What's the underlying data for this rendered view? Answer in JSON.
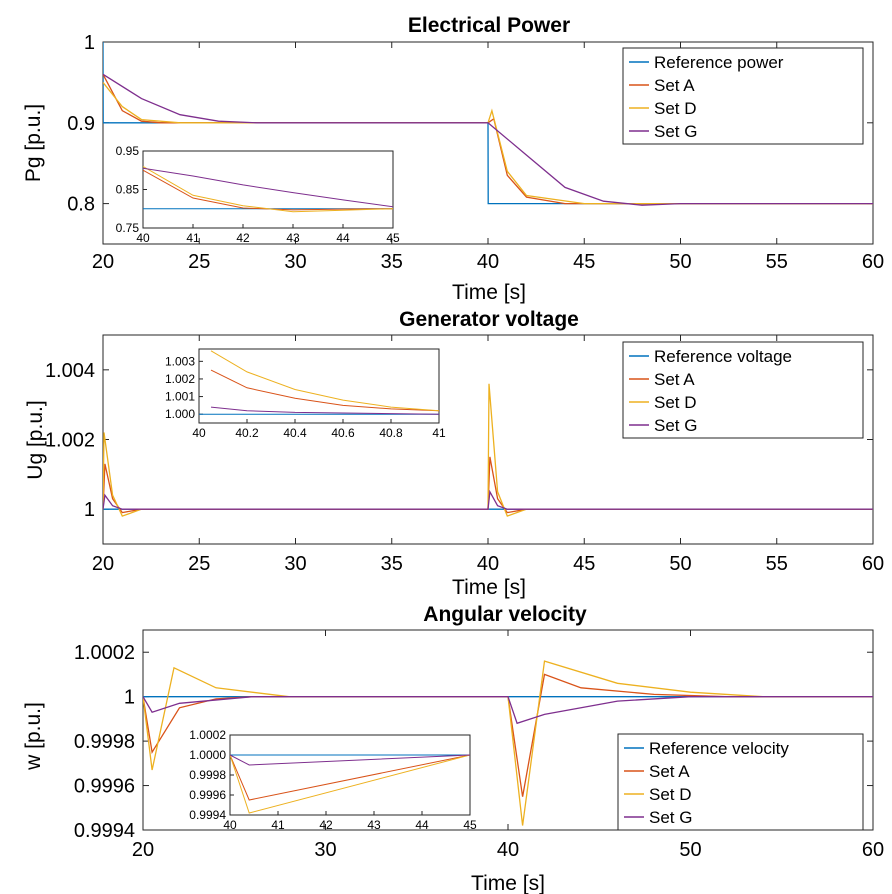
{
  "chart_data": [
    {
      "type": "line",
      "title": "Electrical Power",
      "xlabel": "Time [s]",
      "ylabel": "Pg [p.u.]",
      "xlim": [
        20,
        60
      ],
      "ylim": [
        0.75,
        1.0
      ],
      "xticks": [
        "20",
        "25",
        "30",
        "35",
        "40",
        "45",
        "50",
        "55",
        "60"
      ],
      "yticks": [
        "0.8",
        "0.9",
        "1"
      ],
      "legend_position": "top-right",
      "series": [
        {
          "name": "Reference power",
          "color": "#0072BD",
          "points": [
            [
              20,
              1.0
            ],
            [
              20.01,
              0.9
            ],
            [
              40,
              0.9
            ],
            [
              40.01,
              0.8
            ],
            [
              60,
              0.8
            ]
          ]
        },
        {
          "name": "Set A",
          "color": "#D95319",
          "points": [
            [
              20,
              0.96
            ],
            [
              21,
              0.915
            ],
            [
              22,
              0.902
            ],
            [
              23,
              0.9
            ],
            [
              40,
              0.9
            ],
            [
              40.3,
              0.905
            ],
            [
              41,
              0.835
            ],
            [
              42,
              0.808
            ],
            [
              44,
              0.8
            ],
            [
              60,
              0.8
            ]
          ]
        },
        {
          "name": "Set D",
          "color": "#EDB120",
          "points": [
            [
              20,
              0.95
            ],
            [
              21,
              0.92
            ],
            [
              22,
              0.904
            ],
            [
              24,
              0.9
            ],
            [
              40,
              0.9
            ],
            [
              40.2,
              0.915
            ],
            [
              41,
              0.84
            ],
            [
              42,
              0.81
            ],
            [
              45,
              0.8
            ],
            [
              60,
              0.8
            ]
          ]
        },
        {
          "name": "Set G",
          "color": "#7E2F8E",
          "points": [
            [
              20,
              0.96
            ],
            [
              22,
              0.93
            ],
            [
              24,
              0.91
            ],
            [
              26,
              0.902
            ],
            [
              28,
              0.9
            ],
            [
              40,
              0.9
            ],
            [
              42,
              0.86
            ],
            [
              44,
              0.82
            ],
            [
              46,
              0.803
            ],
            [
              48,
              0.798
            ],
            [
              50,
              0.8
            ],
            [
              60,
              0.8
            ]
          ]
        }
      ],
      "inset": {
        "xlim": [
          40,
          45
        ],
        "ylim": [
          0.75,
          0.95
        ],
        "xticks": [
          "40",
          "41",
          "42",
          "43",
          "44",
          "45"
        ],
        "yticks": [
          "0.75",
          "0.85",
          "0.95"
        ],
        "series": [
          {
            "color": "#0072BD",
            "points": [
              [
                40,
                0.8
              ],
              [
                45,
                0.8
              ]
            ]
          },
          {
            "color": "#D95319",
            "points": [
              [
                40,
                0.9
              ],
              [
                41,
                0.828
              ],
              [
                42,
                0.802
              ],
              [
                43,
                0.797
              ],
              [
                44,
                0.799
              ],
              [
                45,
                0.8
              ]
            ]
          },
          {
            "color": "#EDB120",
            "points": [
              [
                40,
                0.91
              ],
              [
                41,
                0.835
              ],
              [
                42,
                0.808
              ],
              [
                43,
                0.792
              ],
              [
                44,
                0.796
              ],
              [
                45,
                0.8
              ]
            ]
          },
          {
            "color": "#7E2F8E",
            "points": [
              [
                40,
                0.905
              ],
              [
                41,
                0.885
              ],
              [
                42,
                0.862
              ],
              [
                43,
                0.842
              ],
              [
                44,
                0.823
              ],
              [
                45,
                0.805
              ]
            ]
          }
        ]
      }
    },
    {
      "type": "line",
      "title": "Generator voltage",
      "xlabel": "Time [s]",
      "ylabel": "Ug [p.u.]",
      "xlim": [
        20,
        60
      ],
      "ylim": [
        0.999,
        1.005
      ],
      "xticks": [
        "20",
        "25",
        "30",
        "35",
        "40",
        "45",
        "50",
        "55",
        "60"
      ],
      "yticks": [
        "1",
        "1.002",
        "1.004"
      ],
      "legend_position": "top-right",
      "series": [
        {
          "name": "Reference voltage",
          "color": "#0072BD",
          "points": [
            [
              20,
              1.0
            ],
            [
              60,
              1.0
            ]
          ]
        },
        {
          "name": "Set A",
          "color": "#D95319",
          "points": [
            [
              20,
              1.0
            ],
            [
              20.1,
              1.0013
            ],
            [
              20.5,
              1.0003
            ],
            [
              21,
              0.9999
            ],
            [
              22,
              1.0
            ],
            [
              40,
              1.0
            ],
            [
              40.1,
              1.0015
            ],
            [
              40.5,
              1.0003
            ],
            [
              41,
              0.9999
            ],
            [
              42,
              1.0
            ],
            [
              60,
              1.0
            ]
          ]
        },
        {
          "name": "Set D",
          "color": "#EDB120",
          "points": [
            [
              20,
              1.0
            ],
            [
              20.05,
              1.0022
            ],
            [
              20.5,
              1.0004
            ],
            [
              21,
              0.9998
            ],
            [
              22,
              1.0
            ],
            [
              40,
              1.0
            ],
            [
              40.05,
              1.0036
            ],
            [
              40.5,
              1.0005
            ],
            [
              41,
              0.9998
            ],
            [
              42,
              1.0
            ],
            [
              60,
              1.0
            ]
          ]
        },
        {
          "name": "Set G",
          "color": "#7E2F8E",
          "points": [
            [
              20,
              1.0
            ],
            [
              20.1,
              1.0004
            ],
            [
              20.5,
              1.0001
            ],
            [
              21,
              1.0
            ],
            [
              40,
              1.0
            ],
            [
              40.1,
              1.0005
            ],
            [
              40.5,
              1.0001
            ],
            [
              41,
              1.0
            ],
            [
              60,
              1.0
            ]
          ]
        }
      ],
      "inset": {
        "xlim": [
          40,
          41
        ],
        "ylim": [
          0.9995,
          1.0037
        ],
        "xticks": [
          "40",
          "40.2",
          "40.4",
          "40.6",
          "40.8",
          "41"
        ],
        "yticks": [
          "1.000",
          "1.001",
          "1.002",
          "1.003"
        ],
        "series": [
          {
            "color": "#0072BD",
            "points": [
              [
                40,
                1.0
              ],
              [
                41,
                1.0
              ]
            ]
          },
          {
            "color": "#D95319",
            "points": [
              [
                40.05,
                1.0025
              ],
              [
                40.2,
                1.0015
              ],
              [
                40.4,
                1.0009
              ],
              [
                40.6,
                1.0005
              ],
              [
                40.8,
                1.0003
              ],
              [
                41,
                1.0002
              ]
            ]
          },
          {
            "color": "#EDB120",
            "points": [
              [
                40.05,
                1.0036
              ],
              [
                40.2,
                1.0024
              ],
              [
                40.4,
                1.0014
              ],
              [
                40.6,
                1.0008
              ],
              [
                40.8,
                1.0004
              ],
              [
                41,
                1.0002
              ]
            ]
          },
          {
            "color": "#7E2F8E",
            "points": [
              [
                40.05,
                1.0004
              ],
              [
                40.2,
                1.0002
              ],
              [
                40.4,
                1.0001
              ],
              [
                41,
                1.0
              ]
            ]
          }
        ]
      }
    },
    {
      "type": "line",
      "title": "Angular velocity",
      "xlabel": "Time [s]",
      "ylabel": "w [p.u.]",
      "xlim": [
        20,
        60
      ],
      "ylim": [
        0.9994,
        1.0003
      ],
      "xticks": [
        "20",
        "30",
        "40",
        "50",
        "60"
      ],
      "yticks": [
        "0.9994",
        "0.9996",
        "0.9998",
        "1",
        "1.0002"
      ],
      "legend_position": "bottom-right",
      "series": [
        {
          "name": "Reference velocity",
          "color": "#0072BD",
          "points": [
            [
              20,
              1.0
            ],
            [
              60,
              1.0
            ]
          ]
        },
        {
          "name": "Set A",
          "color": "#D95319",
          "points": [
            [
              20,
              1.0
            ],
            [
              20.5,
              0.99975
            ],
            [
              22,
              0.99995
            ],
            [
              24,
              0.99999
            ],
            [
              26,
              1.0
            ],
            [
              40,
              1.0
            ],
            [
              40.8,
              0.99955
            ],
            [
              42,
              1.0001
            ],
            [
              44,
              1.00004
            ],
            [
              48,
              1.00001
            ],
            [
              52,
              1.0
            ],
            [
              60,
              1.0
            ]
          ]
        },
        {
          "name": "Set D",
          "color": "#EDB120",
          "points": [
            [
              20,
              1.0
            ],
            [
              20.5,
              0.99967
            ],
            [
              21.7,
              1.00013
            ],
            [
              24,
              1.00004
            ],
            [
              28,
              1.0
            ],
            [
              40,
              1.0
            ],
            [
              40.8,
              0.99942
            ],
            [
              42,
              1.00016
            ],
            [
              46,
              1.00006
            ],
            [
              50,
              1.00002
            ],
            [
              54,
              1.0
            ],
            [
              60,
              1.0
            ]
          ]
        },
        {
          "name": "Set G",
          "color": "#7E2F8E",
          "points": [
            [
              20,
              1.0
            ],
            [
              20.5,
              0.99993
            ],
            [
              22,
              0.99997
            ],
            [
              26,
              1.0
            ],
            [
              40,
              1.0
            ],
            [
              40.5,
              0.99988
            ],
            [
              42,
              0.99992
            ],
            [
              46,
              0.99998
            ],
            [
              50,
              1.0
            ],
            [
              60,
              1.0
            ]
          ]
        }
      ],
      "inset": {
        "xlim": [
          40,
          45
        ],
        "ylim": [
          0.9994,
          1.0002
        ],
        "xticks": [
          "40",
          "41",
          "42",
          "43",
          "44",
          "45"
        ],
        "yticks": [
          "0.9994",
          "0.9996",
          "0.9998",
          "1.0000",
          "1.0002"
        ],
        "series": [
          {
            "color": "#0072BD",
            "points": [
              [
                40,
                1.0
              ],
              [
                45,
                1.0
              ]
            ]
          },
          {
            "color": "#D95319",
            "points": [
              [
                40,
                1.0
              ],
              [
                40.4,
                0.99955
              ],
              [
                45,
                1.0
              ]
            ]
          },
          {
            "color": "#EDB120",
            "points": [
              [
                40,
                1.0
              ],
              [
                40.4,
                0.99942
              ],
              [
                45,
                1.0
              ]
            ]
          },
          {
            "color": "#7E2F8E",
            "points": [
              [
                40,
                1.0
              ],
              [
                40.4,
                0.9999
              ],
              [
                45,
                1.0
              ]
            ]
          }
        ]
      }
    }
  ]
}
